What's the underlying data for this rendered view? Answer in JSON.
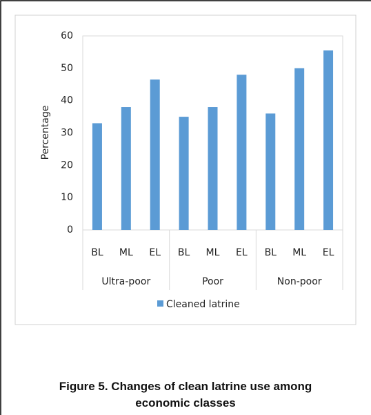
{
  "chart_data": {
    "type": "bar",
    "y_label": "Percentage",
    "categories": [
      "BL",
      "ML",
      "EL",
      "BL",
      "ML",
      "EL",
      "BL",
      "ML",
      "EL"
    ],
    "group_labels": [
      "Ultra-poor",
      "Poor",
      "Non-poor"
    ],
    "series": [
      {
        "name": "Cleaned latrine",
        "color": "#5b9bd5",
        "values": [
          33,
          38,
          46.5,
          35,
          38,
          48,
          36,
          50,
          55.5
        ]
      }
    ],
    "ylim": [
      0,
      60
    ],
    "yticks": [
      0,
      10,
      20,
      30,
      40,
      50,
      60
    ],
    "grid": false,
    "legend": "bottom"
  },
  "caption": "Figure 5. Changes of clean latrine use among economic classes"
}
